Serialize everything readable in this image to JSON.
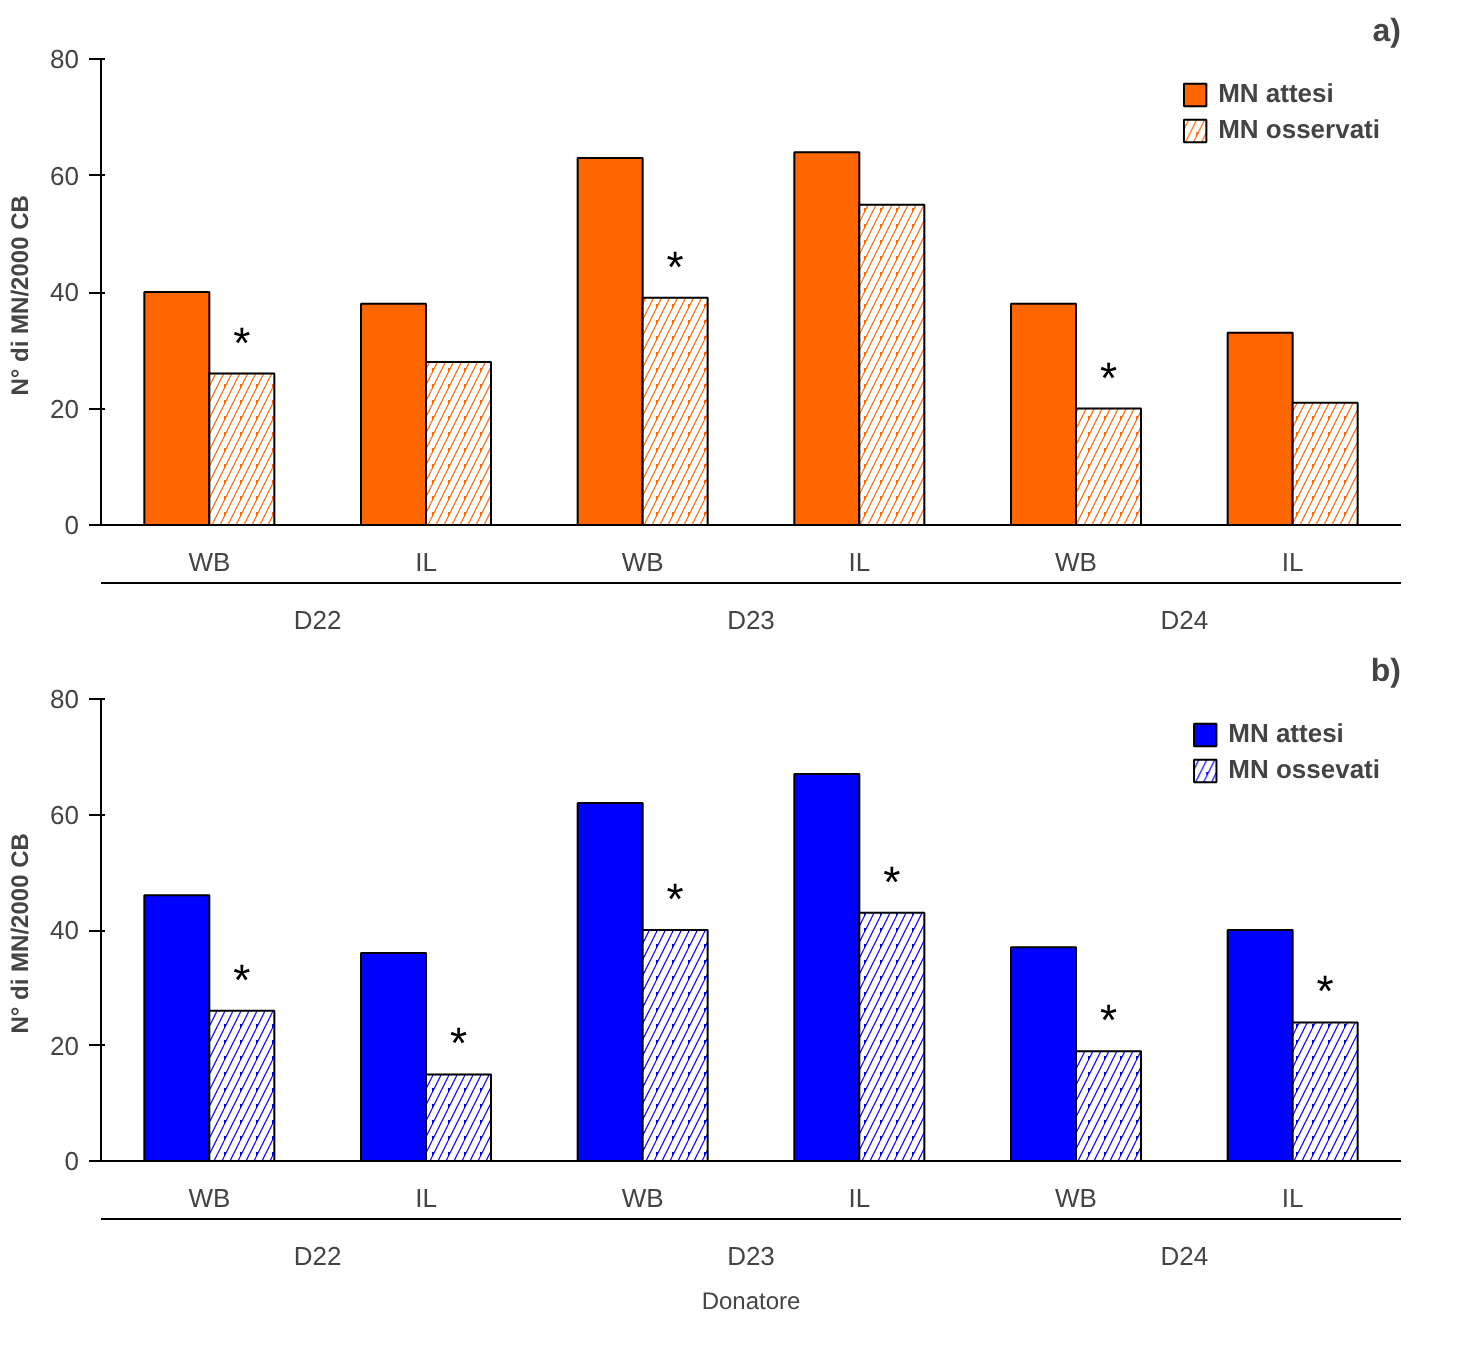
{
  "chart_data": [
    {
      "type": "bar",
      "title": "a)",
      "ylabel": "N° di MN/2000  CB",
      "categories": [
        "WB",
        "IL",
        "WB",
        "IL",
        "WB",
        "IL"
      ],
      "annotations": [
        "D22",
        "D23",
        "D24"
      ],
      "series": [
        {
          "name": "MN attesi",
          "color": "#ff6600",
          "values": [
            40,
            38,
            63,
            64,
            38,
            33
          ]
        },
        {
          "name": "MN osservati",
          "color": "#ff6600",
          "values": [
            26,
            28,
            39,
            55,
            20,
            21
          ],
          "value_labels": [
            "*",
            null,
            "*",
            null,
            "*",
            null
          ]
        }
      ],
      "ylim": [
        0,
        80
      ],
      "yticks": [
        0,
        20,
        40,
        60,
        80
      ],
      "grid": false,
      "legend": "top right"
    },
    {
      "type": "bar",
      "title": "b)",
      "ylabel": "N° di MN/2000  CB",
      "xlabel": "Donatore",
      "categories": [
        "WB",
        "IL",
        "WB",
        "IL",
        "WB",
        "IL"
      ],
      "annotations": [
        "D22",
        "D23",
        "D24"
      ],
      "series": [
        {
          "name": "MN attesi",
          "color": "#0000ff",
          "values": [
            46,
            36,
            62,
            67,
            37,
            40
          ]
        },
        {
          "name": "MN ossevati",
          "color": "#0000ff",
          "values": [
            26,
            15,
            40,
            43,
            19,
            24
          ],
          "value_labels": [
            "*",
            "*",
            "*",
            "*",
            "*",
            "*"
          ]
        }
      ],
      "ylim": [
        0,
        80
      ],
      "yticks": [
        0,
        20,
        40,
        60,
        80
      ],
      "grid": false,
      "legend": "top right"
    }
  ]
}
